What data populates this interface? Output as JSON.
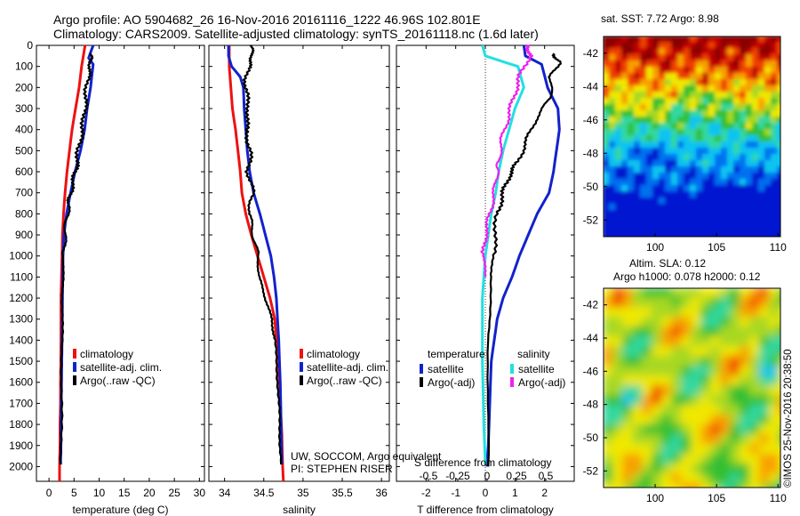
{
  "header": {
    "line1": "Argo profile: AO 5904682_26 16-Nov-2016 20161116_1222 46.96S 102.801E",
    "line2": "Climatology: CARS2009. Satellite-adjusted climatology: synTS_20161118.nc (1.6d later)"
  },
  "colors": {
    "red": "#ee1111",
    "blue": "#1122cc",
    "black": "#000000",
    "cyan": "#22e0e0",
    "magenta": "#ee22ee"
  },
  "chart_data": [
    {
      "type": "line",
      "xlabel": "temperature (deg C)",
      "xlim": [
        -2.5,
        31
      ],
      "ylim": [
        2070,
        0
      ],
      "xticks": [
        "0",
        "5",
        "10",
        "15",
        "20",
        "25",
        "30"
      ],
      "yticks": [
        "0",
        "100",
        "200",
        "300",
        "400",
        "500",
        "600",
        "700",
        "800",
        "900",
        "1000",
        "1100",
        "1200",
        "1300",
        "1400",
        "1500",
        "1600",
        "1700",
        "1800",
        "1900",
        "2000"
      ],
      "legend": {
        "position": "bottom-right",
        "entries": [
          "climatology",
          "satellite-adj. clim.",
          "Argo(..raw -QC)"
        ]
      },
      "series": [
        {
          "name": "climatology",
          "color": "red",
          "x": [
            7.2,
            6.5,
            6.0,
            5.3,
            4.6,
            4.1,
            3.6,
            3.2,
            2.9,
            2.7,
            2.6,
            2.5,
            2.4,
            2.4,
            2.3,
            2.3,
            2.2,
            2.2,
            2.1,
            2.1
          ],
          "y": [
            0,
            100,
            200,
            300,
            400,
            500,
            600,
            700,
            800,
            900,
            1000,
            1100,
            1200,
            1400,
            1600,
            1700,
            1800,
            1900,
            2000,
            2070
          ]
        },
        {
          "name": "satellite-adj. clim.",
          "color": "blue",
          "x": [
            8.8,
            7.9,
            8.8,
            8.3,
            7.6,
            7.1,
            6.3,
            5.2,
            4.3,
            3.5,
            3.0,
            2.8,
            2.7,
            2.6,
            2.5,
            2.4,
            2.4,
            2.3
          ],
          "y": [
            0,
            60,
            90,
            200,
            300,
            400,
            500,
            600,
            700,
            800,
            900,
            1000,
            1200,
            1400,
            1600,
            1800,
            1900,
            1990
          ]
        },
        {
          "name": "Argo(..raw -QC)",
          "color": "black",
          "x": [
            8.2,
            8.4,
            7.8,
            7.3,
            7.0,
            6.2,
            5.6,
            5.1,
            4.3,
            3.9,
            3.4,
            3.0,
            2.8,
            2.7,
            2.6,
            2.5,
            2.4
          ],
          "y": [
            40,
            80,
            150,
            250,
            350,
            450,
            550,
            620,
            700,
            760,
            850,
            950,
            1050,
            1200,
            1400,
            1700,
            1990
          ]
        }
      ]
    },
    {
      "type": "line",
      "xlabel": "salinity",
      "xlim": [
        33.8,
        36.1
      ],
      "ylim": [
        2070,
        0
      ],
      "xticks": [
        "34",
        "34.5",
        "35",
        "35.5",
        "36"
      ],
      "legend": {
        "position": "bottom-right",
        "entries": [
          "climatology",
          "satellite-adj. clim.",
          "Argo(..raw -QC)"
        ]
      },
      "annotation": [
        "UW, SOCCOM, Argo equivalent",
        "PI: STEPHEN RISER"
      ],
      "series": [
        {
          "name": "climatology",
          "color": "red",
          "x": [
            34.06,
            34.06,
            34.08,
            34.1,
            34.14,
            34.17,
            34.2,
            34.22,
            34.27,
            34.34,
            34.42,
            34.5,
            34.58,
            34.64,
            34.68,
            34.71,
            34.73,
            34.74,
            34.75
          ],
          "y": [
            0,
            100,
            200,
            300,
            400,
            500,
            600,
            700,
            800,
            900,
            1000,
            1100,
            1200,
            1300,
            1500,
            1700,
            1850,
            2000,
            2070
          ]
        },
        {
          "name": "satellite-adj. clim.",
          "color": "blue",
          "x": [
            34.05,
            34.05,
            34.09,
            34.2,
            34.24,
            34.25,
            34.27,
            34.29,
            34.32,
            34.37,
            34.45,
            34.52,
            34.59,
            34.63,
            34.66,
            34.69,
            34.71,
            34.72,
            34.73
          ],
          "y": [
            0,
            50,
            100,
            150,
            200,
            300,
            400,
            500,
            600,
            700,
            800,
            900,
            1000,
            1100,
            1200,
            1400,
            1600,
            1800,
            1990
          ]
        },
        {
          "name": "Argo(..raw -QC)",
          "color": "black",
          "x": [
            34.33,
            34.36,
            34.3,
            34.26,
            34.31,
            34.27,
            34.33,
            34.3,
            34.36,
            34.31,
            34.37,
            34.42,
            34.44,
            34.52,
            34.6,
            34.64,
            34.68,
            34.7,
            34.72
          ],
          "y": [
            0,
            50,
            110,
            200,
            300,
            400,
            500,
            600,
            700,
            800,
            900,
            1000,
            1100,
            1200,
            1300,
            1400,
            1600,
            1800,
            1990
          ]
        }
      ]
    },
    {
      "type": "line",
      "xlabel": "T difference from climatology",
      "top_axis_label": "S difference from climatology",
      "xlim": [
        -3.0,
        3.0
      ],
      "ylim": [
        2070,
        0
      ],
      "xticks": [
        "-2",
        "-1",
        "0",
        "1",
        "2"
      ],
      "top_ticks": [
        "-0.5",
        "-0.25",
        "0",
        "0.25",
        "0.5"
      ],
      "legend": {
        "position": "bottom",
        "headers": [
          "temperature",
          "salinity"
        ],
        "entries": [
          "satellite",
          "Argo(-adj)",
          "satellite",
          "Argo(-adj)"
        ]
      },
      "series": [
        {
          "name": "satellite",
          "group": "temperature",
          "color": "blue",
          "x": [
            1.3,
            1.35,
            1.9,
            2.1,
            2.45,
            2.5,
            2.4,
            2.3,
            2.15,
            1.75,
            1.45,
            1.15,
            0.9,
            0.6,
            0.4,
            0.3,
            0.2,
            0.15,
            0.1,
            0.05
          ],
          "y": [
            0,
            50,
            90,
            200,
            300,
            400,
            500,
            600,
            700,
            800,
            900,
            1000,
            1100,
            1200,
            1300,
            1400,
            1500,
            1700,
            1900,
            2000
          ]
        },
        {
          "name": "Argo(-adj)",
          "group": "temperature",
          "color": "black",
          "x": [
            2.3,
            2.5,
            2.2,
            2.2,
            1.7,
            1.4,
            1.1,
            0.8,
            0.6,
            0.4,
            0.3,
            0.2,
            0.1,
            0.1
          ],
          "y": [
            40,
            80,
            150,
            250,
            350,
            450,
            550,
            620,
            700,
            800,
            950,
            1100,
            1400,
            2000
          ]
        },
        {
          "name": "satellite",
          "group": "salinity",
          "color": "cyan",
          "x": [
            -0.1,
            0.0,
            1.1,
            1.3,
            1.0,
            0.8,
            0.6,
            0.45,
            0.35,
            0.2,
            0.0,
            -0.1,
            -0.1,
            -0.05,
            0.0
          ],
          "y": [
            0,
            50,
            100,
            200,
            300,
            400,
            500,
            600,
            700,
            800,
            1000,
            1200,
            1500,
            1800,
            1990
          ]
        },
        {
          "name": "Argo(-adj)",
          "group": "salinity",
          "color": "magenta",
          "x": [
            1.45,
            1.5,
            1.15,
            0.95,
            0.75,
            0.55,
            0.45,
            0.4,
            0.3,
            0.15,
            0.0,
            -0.05,
            0.0
          ],
          "y": [
            0,
            50,
            150,
            250,
            350,
            450,
            550,
            600,
            700,
            800,
            900,
            1000,
            1100
          ]
        }
      ]
    },
    {
      "type": "heatmap",
      "title": "sat. SST: 7.72  Argo: 8.98",
      "xticks": [
        "100",
        "105",
        "110"
      ],
      "yticks": [
        "-42",
        "-44",
        "-46",
        "-48",
        "-50",
        "-52"
      ],
      "xlim": [
        95.8,
        110.2
      ],
      "ylim": [
        -53.0,
        -41.0
      ]
    },
    {
      "type": "heatmap",
      "title_line1": "Altim. SLA: 0.12",
      "title_line2": "Argo h1000: 0.078 h2000: 0.12",
      "xticks": [
        "100",
        "105",
        "110"
      ],
      "yticks": [
        "-42",
        "-44",
        "-46",
        "-48",
        "-50",
        "-52"
      ],
      "xlim": [
        95.8,
        110.2
      ],
      "ylim": [
        -53.0,
        -41.0
      ]
    }
  ],
  "watermark": "©IMOS 25-Nov-2016 20:38:50"
}
